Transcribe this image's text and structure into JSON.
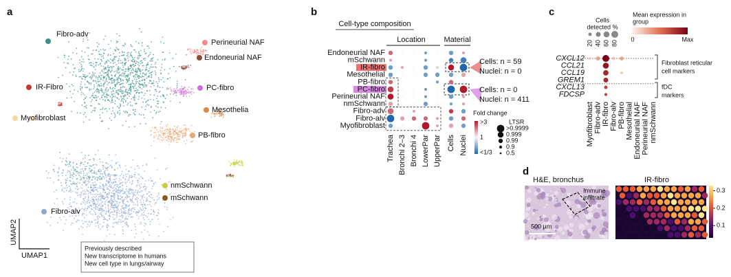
{
  "panels": {
    "a": "a",
    "b": "b",
    "c": "c",
    "d": "d"
  },
  "umap": {
    "x_label": "UMAP1",
    "y_label": "UMAP2",
    "labels": [
      {
        "text": "Fibro-adv",
        "color": "#111111",
        "dot": "#3a8f8a"
      },
      {
        "text": "Perineurial NAF",
        "color": "#b22222",
        "dot": "#f08a8a"
      },
      {
        "text": "Endoneurial NAF",
        "color": "#b22222",
        "dot": "#8b4a32"
      },
      {
        "text": "IR-Fibro",
        "color": "#7a1fa2",
        "dot": "#c0392b"
      },
      {
        "text": "PC-fibro",
        "color": "#7a1fa2",
        "dot": "#d070d8"
      },
      {
        "text": "Mesothelia",
        "color": "#111111",
        "dot": "#d9894d"
      },
      {
        "text": "Myofibroblast",
        "color": "#111111",
        "dot": "#f5d9a0"
      },
      {
        "text": "PB-fibro",
        "color": "#b22222",
        "dot": "#e8a872"
      },
      {
        "text": "nmSchwann",
        "color": "#8b1a1a",
        "dot": "#c8d040"
      },
      {
        "text": "mSchwann",
        "color": "#8b1a1a",
        "dot": "#8a5a20"
      },
      {
        "text": "Fibro-alv",
        "color": "#111111",
        "dot": "#8fa8d0"
      }
    ],
    "legend": [
      {
        "text": "Previously described",
        "color": "#111111"
      },
      {
        "text": "New transcriptome in humans",
        "color": "#b22222"
      },
      {
        "text": "New cell type in lungs/airway",
        "color": "#7a1fa2"
      }
    ]
  },
  "composition": {
    "title": "Cell-type composition",
    "groups": [
      "Location",
      "Material"
    ],
    "rows": [
      "Endoneurial NAF",
      "mSchwann",
      "IR-fibro",
      "Mesothelial",
      "PB-fibro",
      "PC-fibro",
      "Perineurial NAF",
      "nmSchwann",
      "Fibro-adv",
      "Fibro-alv",
      "Myofibroblast"
    ],
    "columns": [
      "Trachea",
      "Bronchi 2–3",
      "Bronchi 4",
      "LowerPar",
      "UpperPar",
      "Cells",
      "Nuclei"
    ],
    "fold": [
      [
        2,
        1,
        1,
        0.5,
        1,
        0.5,
        1.5
      ],
      [
        1.5,
        1,
        1,
        0.5,
        1,
        0.4,
        0.4
      ],
      [
        0.5,
        1.5,
        1,
        0.5,
        0.8,
        3,
        0.33
      ],
      [
        0.5,
        1,
        1,
        0.5,
        0.5,
        0.5,
        1.5
      ],
      [
        2,
        1,
        1,
        1,
        0.5,
        2,
        1
      ],
      [
        2.5,
        1,
        1,
        0.5,
        1,
        0.33,
        3
      ],
      [
        3,
        1,
        1,
        0.5,
        1,
        0.5,
        1.5
      ],
      [
        1.5,
        1,
        1,
        0.5,
        1,
        0.5,
        1.5
      ],
      [
        2,
        1,
        1.5,
        1,
        1,
        2.5,
        0.5
      ],
      [
        0.33,
        1.5,
        2,
        2,
        1.5,
        0.5,
        2
      ],
      [
        0.5,
        1,
        1,
        3,
        1.5,
        1.5,
        0.5
      ]
    ],
    "ltsr": [
      [
        0.99,
        0.5,
        0.5,
        0.9,
        0.5,
        0.99,
        0.9
      ],
      [
        0.9,
        0.5,
        0.5,
        0.9,
        0.5,
        0.99,
        0.999
      ],
      [
        0.99,
        0.9,
        0.5,
        0.99,
        0.9,
        0.999,
        0.9999
      ],
      [
        0.99,
        0.5,
        0.5,
        0.99,
        0.99,
        0.99,
        0.99
      ],
      [
        0.99,
        0.5,
        0.5,
        0.5,
        0.9,
        0.99,
        0.9
      ],
      [
        0.999,
        0.5,
        0.5,
        0.9,
        0.5,
        0.9999,
        0.9999
      ],
      [
        0.999,
        0.5,
        0.5,
        0.9,
        0.5,
        0.99,
        0.9
      ],
      [
        0.99,
        0.5,
        0.5,
        0.99,
        0.5,
        0.9,
        0.9
      ],
      [
        0.999,
        0.5,
        0.9,
        0.5,
        0.5,
        0.99,
        0.99
      ],
      [
        0.9999,
        0.99,
        0.99,
        0.99,
        0.9,
        0.99,
        0.99
      ],
      [
        0.99,
        0.5,
        0.5,
        0.9999,
        0.9,
        0.99,
        0.99
      ]
    ],
    "annotations": [
      "Cells: n = 59",
      "Nuclei: n = 0",
      "Cells: n = 0",
      "Nuclei: n = 411"
    ],
    "fold_legend": {
      "title": "Fold change",
      "labels": [
        ">3",
        "1",
        "<1/3"
      ]
    },
    "ltsr_legend": {
      "title": "LTSR",
      "levels": [
        {
          "value": 0.9999,
          "label": ">0.9999"
        },
        0.999,
        0.99,
        0.9,
        0.5
      ]
    }
  },
  "markers": {
    "size_title": [
      "Cells",
      "detected %"
    ],
    "size_ticks": [
      20,
      40,
      60,
      80
    ],
    "color_title": [
      "Mean expression in",
      "group"
    ],
    "color_labels": [
      "0",
      "Max"
    ],
    "genes": [
      "CXCL12",
      "CCL21",
      "CCL19",
      "GREM1",
      "CXCL13",
      "FDCSP"
    ],
    "cell_types": [
      "Myofibroblast",
      "Fibro-adv",
      "IR-fibro",
      "Fibro-alv",
      "PB-fibro",
      "Mesothelial",
      "Endoneurial NAF",
      "Perineurial NAF",
      "nmSchwann"
    ],
    "pct": [
      [
        10,
        30,
        80,
        15,
        25,
        0,
        0,
        0,
        0
      ],
      [
        0,
        0,
        60,
        0,
        0,
        0,
        0,
        0,
        0
      ],
      [
        0,
        0,
        50,
        0,
        10,
        0,
        0,
        0,
        0
      ],
      [
        0,
        0,
        40,
        0,
        0,
        0,
        0,
        0,
        0
      ],
      [
        0,
        0,
        20,
        0,
        0,
        0,
        0,
        0,
        0
      ],
      [
        0,
        0,
        15,
        0,
        0,
        0,
        0,
        0,
        0
      ]
    ],
    "expression": [
      [
        0.2,
        0.3,
        1,
        0.2,
        0.3,
        0,
        0,
        0,
        0
      ],
      [
        0,
        0,
        0.9,
        0,
        0,
        0,
        0,
        0,
        0
      ],
      [
        0,
        0,
        0.8,
        0,
        0.2,
        0,
        0,
        0,
        0
      ],
      [
        0,
        0,
        0.8,
        0,
        0,
        0,
        0,
        0,
        0
      ],
      [
        0,
        0,
        0.7,
        0,
        0,
        0,
        0,
        0,
        0
      ],
      [
        0,
        0,
        0.7,
        0,
        0,
        0,
        0,
        0,
        0
      ]
    ],
    "groups": [
      [
        "Fibroblast reticular",
        "cell markers"
      ],
      [
        "fDC",
        "markers"
      ]
    ]
  },
  "spatial": {
    "left_title": "H&E, bronchus",
    "annotation": [
      "Immune",
      "infiltrate"
    ],
    "scale_bar": "500 μm",
    "right_title": "IR-fibro",
    "colorbar_ticks": [
      0.1,
      0.2,
      0.3
    ],
    "colorbar_range": [
      0.03,
      0.33
    ]
  }
}
